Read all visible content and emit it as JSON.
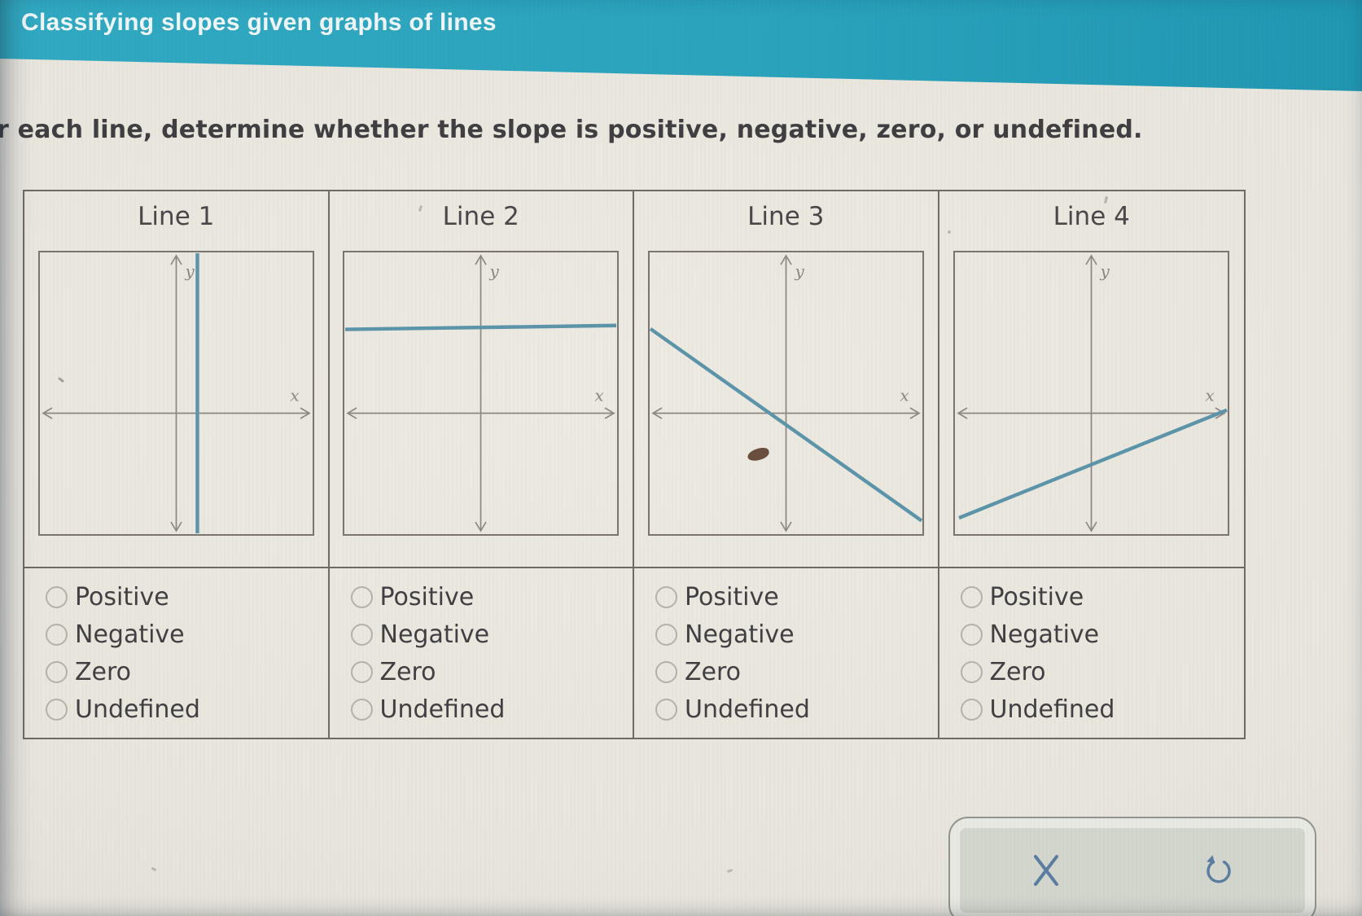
{
  "header": {
    "title": "Classifying slopes given graphs of lines"
  },
  "instruction": "r each line, determine whether the slope is positive, negative, zero, or undefined.",
  "axis_labels": {
    "x": "x",
    "y": "y"
  },
  "option_labels": [
    "Positive",
    "Negative",
    "Zero",
    "Undefined"
  ],
  "columns": [
    {
      "label": "Line 1",
      "line": {
        "kind": "vertical",
        "segment": {
          "x1": 0.578,
          "y1": 0.0,
          "x2": 0.578,
          "y2": 1.0
        }
      }
    },
    {
      "label": "Line 2",
      "line": {
        "kind": "horizontal",
        "segment": {
          "x1": 0.0,
          "y1": 0.272,
          "x2": 1.0,
          "y2": 0.258
        }
      }
    },
    {
      "label": "Line 3",
      "line": {
        "kind": "negative",
        "segment": {
          "x1": 0.0,
          "y1": 0.27,
          "x2": 1.0,
          "y2": 0.955
        }
      }
    },
    {
      "label": "Line 4",
      "line": {
        "kind": "positive",
        "segment": {
          "x1": 0.012,
          "y1": 0.945,
          "x2": 1.0,
          "y2": 0.56
        }
      }
    }
  ],
  "toolbar": {
    "buttons": [
      "close-icon",
      "undo-icon"
    ]
  },
  "colors": {
    "header_teal": "#2ba3bd",
    "page_beige": "#e8e5dd",
    "table_border": "#6f6a64",
    "graph_border": "#7b756e",
    "axis_gray": "#8d8882",
    "line_teal": "#5c95aa",
    "text_dark": "#423f43",
    "icon_blue": "#5b7da1"
  }
}
